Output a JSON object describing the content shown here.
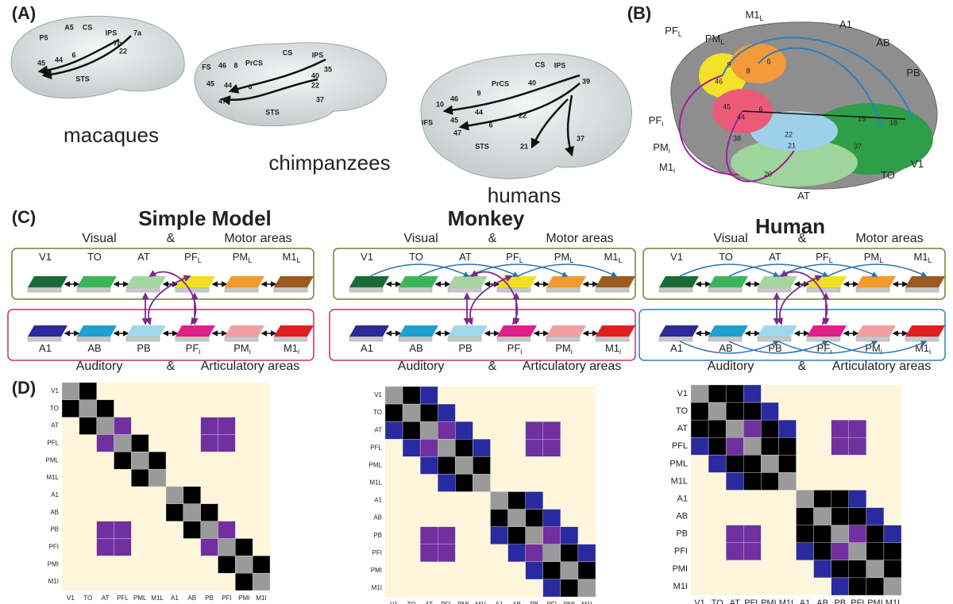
{
  "panels": {
    "a": "(A)",
    "b": "(B)",
    "c": "(C)",
    "d": "(D)"
  },
  "species": [
    "macaques",
    "chimpanzees",
    "humans"
  ],
  "brain_labels": [
    [
      "A5",
      "CS",
      "IPS",
      "7a",
      "P5",
      "7b",
      "6",
      "22",
      "45",
      "44",
      "STS"
    ],
    [
      "FS",
      "46",
      "8",
      "PrCS",
      "CS",
      "IPS",
      "35",
      "45",
      "44",
      "6",
      "40",
      "22",
      "37",
      "47",
      "STS"
    ],
    [
      "PrCS",
      "CS",
      "IPS",
      "40",
      "39",
      "46",
      "9",
      "10",
      "IFS",
      "44",
      "45",
      "6",
      "22",
      "47",
      "STS",
      "21",
      "37"
    ]
  ],
  "panel_b": {
    "labels": [
      {
        "main": "PF",
        "sub": "L"
      },
      {
        "main": "PM",
        "sub": "L"
      },
      {
        "main": "M1",
        "sub": "L"
      },
      {
        "main": "A1"
      },
      {
        "main": "AB"
      },
      {
        "main": "PB"
      },
      {
        "main": "PF",
        "sub": "i"
      },
      {
        "main": "PM",
        "sub": "i"
      },
      {
        "main": "M1",
        "sub": "i"
      },
      {
        "main": "AT"
      },
      {
        "main": "TO"
      },
      {
        "main": "V1"
      }
    ],
    "areas": [
      "9",
      "8",
      "6",
      "46",
      "45",
      "44",
      "6",
      "22",
      "38",
      "21",
      "37",
      "19",
      "18",
      "20"
    ]
  },
  "models": [
    "Simple Model",
    "Monkey",
    "Human"
  ],
  "visual": "Visual",
  "amp": "&",
  "motor": "Motor areas",
  "auditory": "Auditory",
  "articulatory": "Articulatory areas",
  "top_areas": [
    {
      "main": "V1"
    },
    {
      "main": "TO"
    },
    {
      "main": "AT"
    },
    {
      "main": "PF",
      "sub": "L"
    },
    {
      "main": "PM",
      "sub": "L"
    },
    {
      "main": "M1",
      "sub": "L"
    }
  ],
  "bottom_areas": [
    {
      "main": "A1"
    },
    {
      "main": "AB"
    },
    {
      "main": "PB"
    },
    {
      "main": "PF",
      "sub": "i"
    },
    {
      "main": "PM",
      "sub": "i"
    },
    {
      "main": "M1",
      "sub": "i"
    }
  ],
  "matrix_labels": [
    "V1",
    "TO",
    "AT",
    "PFL",
    "PML",
    "M1L",
    "A1",
    "AB",
    "PB",
    "PFI",
    "PMI",
    "M1I"
  ]
}
